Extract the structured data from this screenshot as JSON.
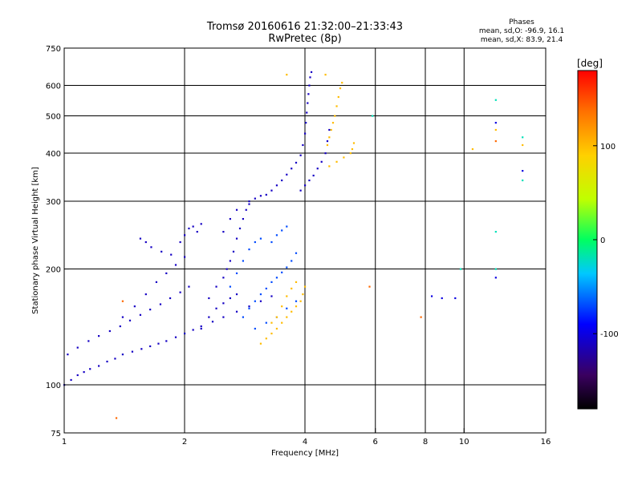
{
  "header": {
    "title_line1": "Tromsø 20160616 21:32:00–21:33:43",
    "title_line2": "RwPretec (8p)"
  },
  "stats": {
    "heading": "Phases",
    "line_o": "mean, sd,O: -96.9, 16.1",
    "line_x": "mean, sd,X: 83.9, 21.4"
  },
  "colorbar": {
    "unit_label": "[deg]",
    "range": [
      -180,
      180
    ],
    "tick_labels": [
      "100",
      "0",
      "-100"
    ],
    "tick_values": [
      100,
      0,
      -100
    ]
  },
  "chart_data": {
    "type": "scatter",
    "xlabel": "Frequency [MHz]",
    "ylabel": "Stationary phase Virtual Height [km]",
    "x_scale": "log",
    "y_scale": "log",
    "xlim": [
      1,
      16
    ],
    "ylim": [
      75,
      750
    ],
    "x_ticks": [
      1,
      2,
      4,
      6,
      8,
      10,
      16
    ],
    "x_tick_labels": [
      "1",
      "2",
      "4",
      "6",
      "8",
      "10",
      "16"
    ],
    "y_ticks": [
      75,
      100,
      200,
      300,
      400,
      500,
      600,
      750
    ],
    "y_tick_labels": [
      "75",
      "100",
      "200",
      "300",
      "400",
      "500",
      "600",
      "750"
    ],
    "grid": true,
    "series": [
      {
        "phase_deg": -110,
        "points": [
          [
            1.0,
            100
          ],
          [
            1.04,
            103
          ],
          [
            1.08,
            106
          ],
          [
            1.12,
            108
          ],
          [
            1.16,
            110
          ],
          [
            1.22,
            112
          ],
          [
            1.28,
            115
          ],
          [
            1.34,
            117
          ],
          [
            1.4,
            120
          ],
          [
            1.48,
            122
          ],
          [
            1.56,
            124
          ],
          [
            1.64,
            126
          ],
          [
            1.72,
            128
          ],
          [
            1.8,
            130
          ],
          [
            1.9,
            133
          ],
          [
            2.0,
            136
          ],
          [
            2.1,
            139
          ],
          [
            2.2,
            142
          ],
          [
            2.35,
            146
          ],
          [
            2.5,
            150
          ],
          [
            2.7,
            155
          ],
          [
            2.9,
            160
          ],
          [
            3.1,
            165
          ],
          [
            3.3,
            170
          ],
          [
            1.02,
            120
          ],
          [
            1.08,
            125
          ],
          [
            1.15,
            130
          ],
          [
            1.22,
            134
          ],
          [
            1.3,
            138
          ],
          [
            1.38,
            142
          ],
          [
            1.46,
            147
          ],
          [
            1.55,
            152
          ],
          [
            1.64,
            157
          ],
          [
            1.74,
            162
          ],
          [
            1.84,
            168
          ],
          [
            1.95,
            174
          ],
          [
            2.05,
            180
          ],
          [
            1.4,
            150
          ],
          [
            1.5,
            160
          ],
          [
            1.6,
            172
          ],
          [
            1.7,
            185
          ],
          [
            1.8,
            195
          ],
          [
            1.9,
            205
          ],
          [
            2.0,
            215
          ],
          [
            1.55,
            240
          ],
          [
            1.6,
            235
          ],
          [
            1.65,
            228
          ],
          [
            1.75,
            222
          ],
          [
            1.85,
            218
          ],
          [
            1.95,
            235
          ],
          [
            2.0,
            245
          ],
          [
            2.05,
            255
          ],
          [
            2.1,
            258
          ],
          [
            2.15,
            250
          ],
          [
            2.2,
            262
          ],
          [
            2.3,
            168
          ],
          [
            2.4,
            180
          ],
          [
            2.5,
            190
          ],
          [
            2.55,
            200
          ],
          [
            2.6,
            210
          ],
          [
            2.65,
            222
          ],
          [
            2.7,
            240
          ],
          [
            2.75,
            255
          ],
          [
            2.8,
            270
          ],
          [
            2.85,
            285
          ],
          [
            2.9,
            295
          ],
          [
            2.2,
            140
          ],
          [
            2.3,
            150
          ],
          [
            2.4,
            158
          ],
          [
            2.5,
            163
          ],
          [
            2.6,
            168
          ],
          [
            2.7,
            172
          ],
          [
            3.3,
            320
          ],
          [
            3.4,
            330
          ],
          [
            3.5,
            340
          ],
          [
            3.6,
            352
          ],
          [
            3.7,
            365
          ],
          [
            3.8,
            378
          ],
          [
            3.9,
            395
          ],
          [
            3.95,
            420
          ],
          [
            4.0,
            450
          ],
          [
            4.02,
            480
          ],
          [
            4.04,
            510
          ],
          [
            4.06,
            540
          ],
          [
            4.08,
            570
          ],
          [
            4.1,
            600
          ],
          [
            4.12,
            630
          ],
          [
            4.15,
            650
          ],
          [
            2.5,
            250
          ],
          [
            2.6,
            270
          ],
          [
            2.7,
            285
          ],
          [
            2.9,
            300
          ],
          [
            3.0,
            305
          ],
          [
            3.1,
            310
          ],
          [
            3.2,
            312
          ],
          [
            3.9,
            320
          ],
          [
            4.0,
            330
          ],
          [
            4.1,
            340
          ],
          [
            4.2,
            350
          ],
          [
            4.3,
            365
          ],
          [
            4.4,
            380
          ],
          [
            4.5,
            400
          ],
          [
            4.55,
            430
          ],
          [
            4.6,
            460
          ]
        ]
      },
      {
        "phase_deg": -70,
        "points": [
          [
            2.6,
            180
          ],
          [
            2.7,
            195
          ],
          [
            2.8,
            210
          ],
          [
            2.9,
            225
          ],
          [
            3.0,
            235
          ],
          [
            3.1,
            240
          ],
          [
            2.8,
            150
          ],
          [
            2.9,
            158
          ],
          [
            3.0,
            165
          ],
          [
            3.1,
            172
          ],
          [
            3.2,
            178
          ],
          [
            3.3,
            185
          ],
          [
            3.4,
            190
          ],
          [
            3.5,
            196
          ],
          [
            3.6,
            202
          ],
          [
            3.7,
            210
          ],
          [
            3.8,
            220
          ],
          [
            3.3,
            235
          ],
          [
            3.4,
            245
          ],
          [
            3.5,
            252
          ],
          [
            3.6,
            258
          ],
          [
            3.0,
            140
          ],
          [
            3.2,
            145
          ],
          [
            3.4,
            150
          ],
          [
            3.6,
            158
          ],
          [
            3.8,
            165
          ]
        ]
      },
      {
        "phase_deg": 100,
        "points": [
          [
            3.1,
            128
          ],
          [
            3.2,
            132
          ],
          [
            3.3,
            136
          ],
          [
            3.4,
            140
          ],
          [
            3.5,
            145
          ],
          [
            3.6,
            150
          ],
          [
            3.7,
            155
          ],
          [
            3.8,
            160
          ],
          [
            3.9,
            165
          ],
          [
            3.95,
            172
          ],
          [
            4.0,
            180
          ],
          [
            3.3,
            145
          ],
          [
            3.4,
            150
          ],
          [
            3.5,
            160
          ],
          [
            3.6,
            170
          ],
          [
            3.7,
            178
          ],
          [
            3.8,
            185
          ],
          [
            4.55,
            420
          ],
          [
            4.6,
            440
          ],
          [
            4.65,
            460
          ],
          [
            4.7,
            480
          ],
          [
            4.75,
            500
          ],
          [
            4.8,
            530
          ],
          [
            4.85,
            560
          ],
          [
            4.9,
            590
          ],
          [
            4.95,
            610
          ],
          [
            4.6,
            370
          ],
          [
            4.8,
            380
          ],
          [
            5.0,
            390
          ],
          [
            5.2,
            400
          ],
          [
            5.25,
            410
          ],
          [
            5.3,
            425
          ],
          [
            3.6,
            640
          ],
          [
            4.5,
            640
          ],
          [
            10.5,
            410
          ],
          [
            12.0,
            460
          ],
          [
            14.0,
            420
          ]
        ]
      },
      {
        "phase_deg": -20,
        "points": [
          [
            5.9,
            500
          ],
          [
            9.8,
            200
          ],
          [
            12.0,
            550
          ],
          [
            12.0,
            250
          ],
          [
            12.0,
            200
          ],
          [
            14.0,
            440
          ],
          [
            14.0,
            340
          ]
        ]
      },
      {
        "phase_deg": -100,
        "points": [
          [
            8.3,
            170
          ],
          [
            8.8,
            168
          ],
          [
            9.5,
            168
          ],
          [
            12.0,
            190
          ],
          [
            12.0,
            480
          ],
          [
            14.0,
            360
          ]
        ]
      },
      {
        "phase_deg": 140,
        "points": [
          [
            1.35,
            82
          ],
          [
            1.4,
            165
          ],
          [
            5.8,
            180
          ],
          [
            7.8,
            150
          ],
          [
            12.0,
            430
          ]
        ]
      }
    ]
  }
}
